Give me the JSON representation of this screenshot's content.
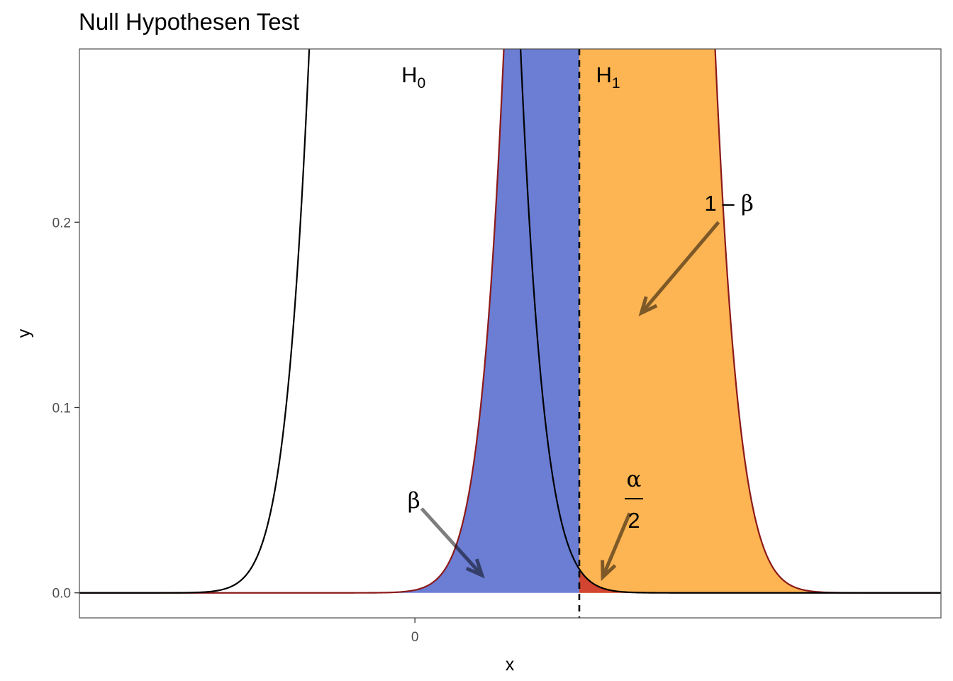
{
  "chart_data": {
    "type": "area",
    "title": "Null Hypothesen Test",
    "xlabel": "x",
    "ylabel": "y",
    "xlim": [
      -1.0,
      1.568
    ],
    "ylim": [
      -0.0135,
      0.2935
    ],
    "grid": false,
    "x_ticks": [
      {
        "value": 0,
        "label": "0"
      }
    ],
    "y_ticks": [
      {
        "value": 0.0,
        "label": "0.0"
      },
      {
        "value": 0.1,
        "label": "0.1"
      },
      {
        "value": 0.2,
        "label": "0.2"
      }
    ],
    "x_range": [
      -1.0,
      1.568
    ],
    "critical_value": 0.49,
    "series": [
      {
        "label": "H",
        "subscript": "0",
        "mean": 0.0,
        "sd": 0.15,
        "color": "#000000"
      },
      {
        "label": "H",
        "subscript": "1",
        "mean": 0.58,
        "sd": 0.15,
        "color": "#8b1a1a"
      }
    ],
    "regions": [
      {
        "name": "beta",
        "color": "#6b7ed4"
      },
      {
        "name": "power",
        "color": "#fdb452"
      },
      {
        "name": "alpha-half",
        "color": "#d24530"
      }
    ],
    "annotations": {
      "beta": "β",
      "power_one": "1",
      "power_minus": "–",
      "power_beta": "β",
      "alpha_num": "α",
      "alpha_den": "2"
    },
    "arrow_color": "#000000",
    "arrow_opacity": 0.5
  }
}
